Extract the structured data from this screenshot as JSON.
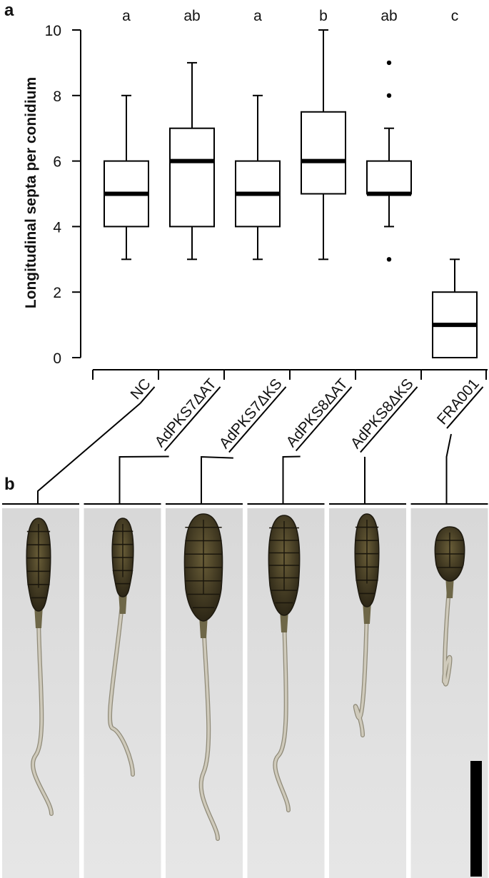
{
  "panel_labels": {
    "a": "a",
    "b": "b"
  },
  "chart_data": {
    "type": "box",
    "ylabel": "Longitudinal septa per conidium",
    "ylim": [
      0,
      10
    ],
    "yticks": [
      0,
      2,
      4,
      6,
      8,
      10
    ],
    "categories": [
      "NC",
      "AdPKS7ΔAT",
      "AdPKS7ΔKS",
      "AdPKS8ΔAT",
      "AdPKS8ΔKS",
      "FRA001"
    ],
    "boxes": [
      {
        "whisker_low": 3,
        "q1": 4,
        "median": 5,
        "q3": 6,
        "whisker_high": 8,
        "outliers": [],
        "letter": "a"
      },
      {
        "whisker_low": 3,
        "q1": 4,
        "median": 6,
        "q3": 7,
        "whisker_high": 9,
        "outliers": [],
        "letter": "ab"
      },
      {
        "whisker_low": 3,
        "q1": 4,
        "median": 5,
        "q3": 6,
        "whisker_high": 8,
        "outliers": [],
        "letter": "a"
      },
      {
        "whisker_low": 3,
        "q1": 5,
        "median": 6,
        "q3": 7.5,
        "whisker_high": 10,
        "outliers": [],
        "letter": "b"
      },
      {
        "whisker_low": 4,
        "q1": 5,
        "median": 5,
        "q3": 6,
        "whisker_high": 7,
        "outliers": [
          3,
          8,
          9
        ],
        "letter": "ab"
      },
      {
        "whisker_low": 0,
        "q1": 0,
        "median": 1,
        "q3": 2,
        "whisker_high": 3,
        "outliers": [],
        "letter": "c"
      }
    ]
  },
  "micrographs": {
    "count": 6,
    "background": "#dcdcdc",
    "cell_color": "#3b3320",
    "hypha_color": "#cfcabb",
    "scale_bar_color": "#000000"
  }
}
